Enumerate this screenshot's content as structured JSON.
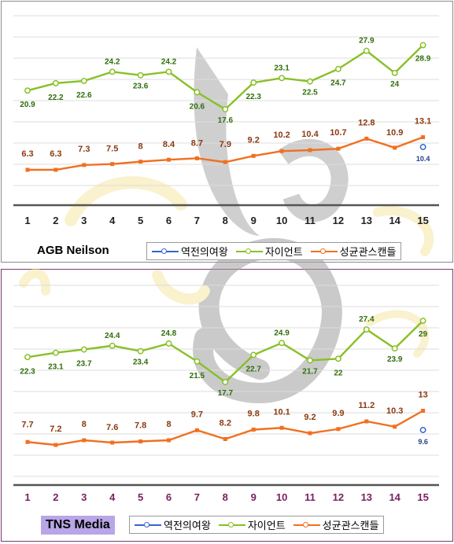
{
  "colors": {
    "series1": "#3366cc",
    "series2": "#88c026",
    "series3": "#f07020",
    "label_green": "#2f6e0a",
    "label_brown": "#8a3a10",
    "label_blue": "#233e8c",
    "axis_purple": "#7a2060",
    "baseline": "#555555"
  },
  "chart_data": [
    {
      "type": "line",
      "panel_label": "AGB Neilson",
      "x": [
        1,
        2,
        3,
        4,
        5,
        6,
        7,
        8,
        9,
        10,
        11,
        12,
        13,
        14,
        15
      ],
      "x_tick_labels": [
        "1",
        "2",
        "3",
        "4",
        "5",
        "6",
        "7",
        "8",
        "9",
        "10",
        "11",
        "12",
        "13",
        "14",
        "15"
      ],
      "series": [
        {
          "name": "역전의여왕",
          "values": [
            null,
            null,
            null,
            null,
            null,
            null,
            null,
            null,
            null,
            null,
            null,
            null,
            null,
            null,
            10.4
          ],
          "labels": [
            "",
            "",
            "",
            "",
            "",
            "",
            "",
            "",
            "",
            "",
            "",
            "",
            "",
            "",
            "10.4"
          ]
        },
        {
          "name": "자이언트",
          "values": [
            20.9,
            22.2,
            22.6,
            24.2,
            23.6,
            24.2,
            20.6,
            17.6,
            22.3,
            23.1,
            22.5,
            24.7,
            27.9,
            24,
            28.9
          ],
          "labels": [
            "20.9",
            "22.2",
            "22.6",
            "24.2",
            "23.6",
            "24.2",
            "20.6",
            "17.6",
            "22.3",
            "23.1",
            "22.5",
            "24.7",
            "27.9",
            "24",
            "28.9"
          ]
        },
        {
          "name": "성균관스캔들",
          "values": [
            6.3,
            6.3,
            7.3,
            7.5,
            8,
            8.4,
            8.7,
            7.9,
            9.2,
            10.2,
            10.4,
            10.7,
            12.8,
            10.9,
            13.1
          ],
          "labels": [
            "6.3",
            "6.3",
            "7.3",
            "7.5",
            "8",
            "8.4",
            "8.7",
            "7.9",
            "9.2",
            "10.2",
            "10.4",
            "10.7",
            "12.8",
            "10.9",
            "13.1"
          ]
        }
      ]
    },
    {
      "type": "line",
      "panel_label": "TNS Media",
      "x": [
        1,
        2,
        3,
        4,
        5,
        6,
        7,
        8,
        9,
        10,
        11,
        12,
        13,
        14,
        15
      ],
      "x_tick_labels": [
        "1",
        "2",
        "3",
        "4",
        "5",
        "6",
        "7",
        "8",
        "9",
        "10",
        "11",
        "12",
        "13",
        "14",
        "15"
      ],
      "series": [
        {
          "name": "역전의여왕",
          "values": [
            null,
            null,
            null,
            null,
            null,
            null,
            null,
            null,
            null,
            null,
            null,
            null,
            null,
            null,
            9.6
          ],
          "labels": [
            "",
            "",
            "",
            "",
            "",
            "",
            "",
            "",
            "",
            "",
            "",
            "",
            "",
            "",
            "9.6"
          ]
        },
        {
          "name": "자이언트",
          "values": [
            22.3,
            23.1,
            23.7,
            24.4,
            23.4,
            24.8,
            21.5,
            17.7,
            22.7,
            24.9,
            21.7,
            22,
            27.4,
            23.9,
            29
          ],
          "labels": [
            "22.3",
            "23.1",
            "23.7",
            "24.4",
            "23.4",
            "24.8",
            "21.5",
            "17.7",
            "22.7",
            "24.9",
            "21.7",
            "22",
            "27.4",
            "23.9",
            "29"
          ]
        },
        {
          "name": "성균관스캔들",
          "values": [
            7.7,
            7.2,
            8,
            7.6,
            7.8,
            8,
            9.7,
            8.2,
            9.8,
            10.1,
            9.2,
            9.9,
            11.2,
            10.3,
            13
          ],
          "labels": [
            "7.7",
            "7.2",
            "8",
            "7.6",
            "7.8",
            "8",
            "9.7",
            "8.2",
            "9.8",
            "10.1",
            "9.2",
            "9.9",
            "11.2",
            "10.3",
            "13"
          ]
        }
      ]
    }
  ]
}
